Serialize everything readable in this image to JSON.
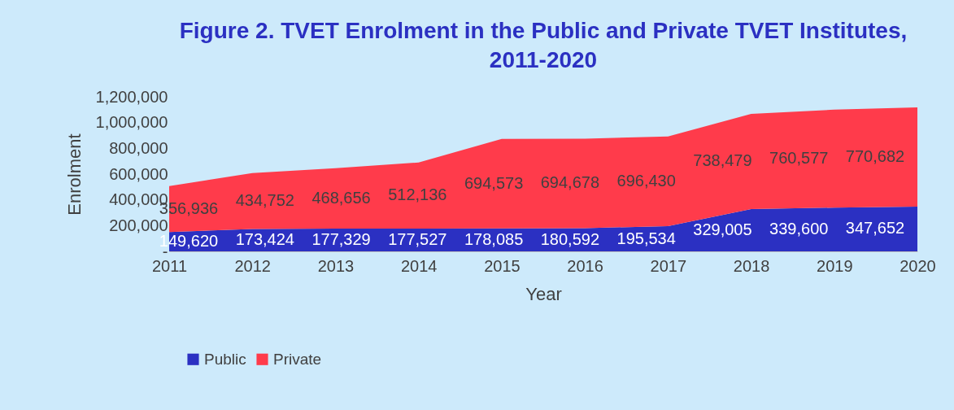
{
  "chart_data": {
    "type": "area",
    "title": "Figure 2. TVET Enrolment in the Public and Private TVET Institutes, 2011-2020",
    "xlabel": "Year",
    "ylabel": "Enrolment",
    "categories": [
      "2011",
      "2012",
      "2013",
      "2014",
      "2015",
      "2016",
      "2017",
      "2018",
      "2019",
      "2020"
    ],
    "stacked": true,
    "series": [
      {
        "name": "Public",
        "color": "#2b30c2",
        "values": [
          149620,
          173424,
          177329,
          177527,
          178085,
          180592,
          195534,
          329005,
          339600,
          347652
        ],
        "value_labels": [
          "149,620",
          "173,424",
          "177,329",
          "177,527",
          "178,085",
          "180,592",
          "195,534",
          "329,005",
          "339,600",
          "347,652"
        ]
      },
      {
        "name": "Private",
        "color": "#ff3b4b",
        "values": [
          356936,
          434752,
          468656,
          512136,
          694573,
          694678,
          696430,
          738479,
          760577,
          770682
        ],
        "value_labels": [
          "356,936",
          "434,752",
          "468,656",
          "512,136",
          "694,573",
          "694,678",
          "696,430",
          "738,479",
          "760,577",
          "770,682"
        ]
      }
    ],
    "ylim": [
      0,
      1200000
    ],
    "yticks": [
      {
        "value": 0,
        "label": "-"
      },
      {
        "value": 200000,
        "label": "200,000"
      },
      {
        "value": 400000,
        "label": "400,000"
      },
      {
        "value": 600000,
        "label": "600,000"
      },
      {
        "value": 800000,
        "label": "800,000"
      },
      {
        "value": 1000000,
        "label": "1,000,000"
      },
      {
        "value": 1200000,
        "label": "1,200,000"
      }
    ],
    "data_labels": true,
    "grid": false,
    "legend": "bottom"
  }
}
